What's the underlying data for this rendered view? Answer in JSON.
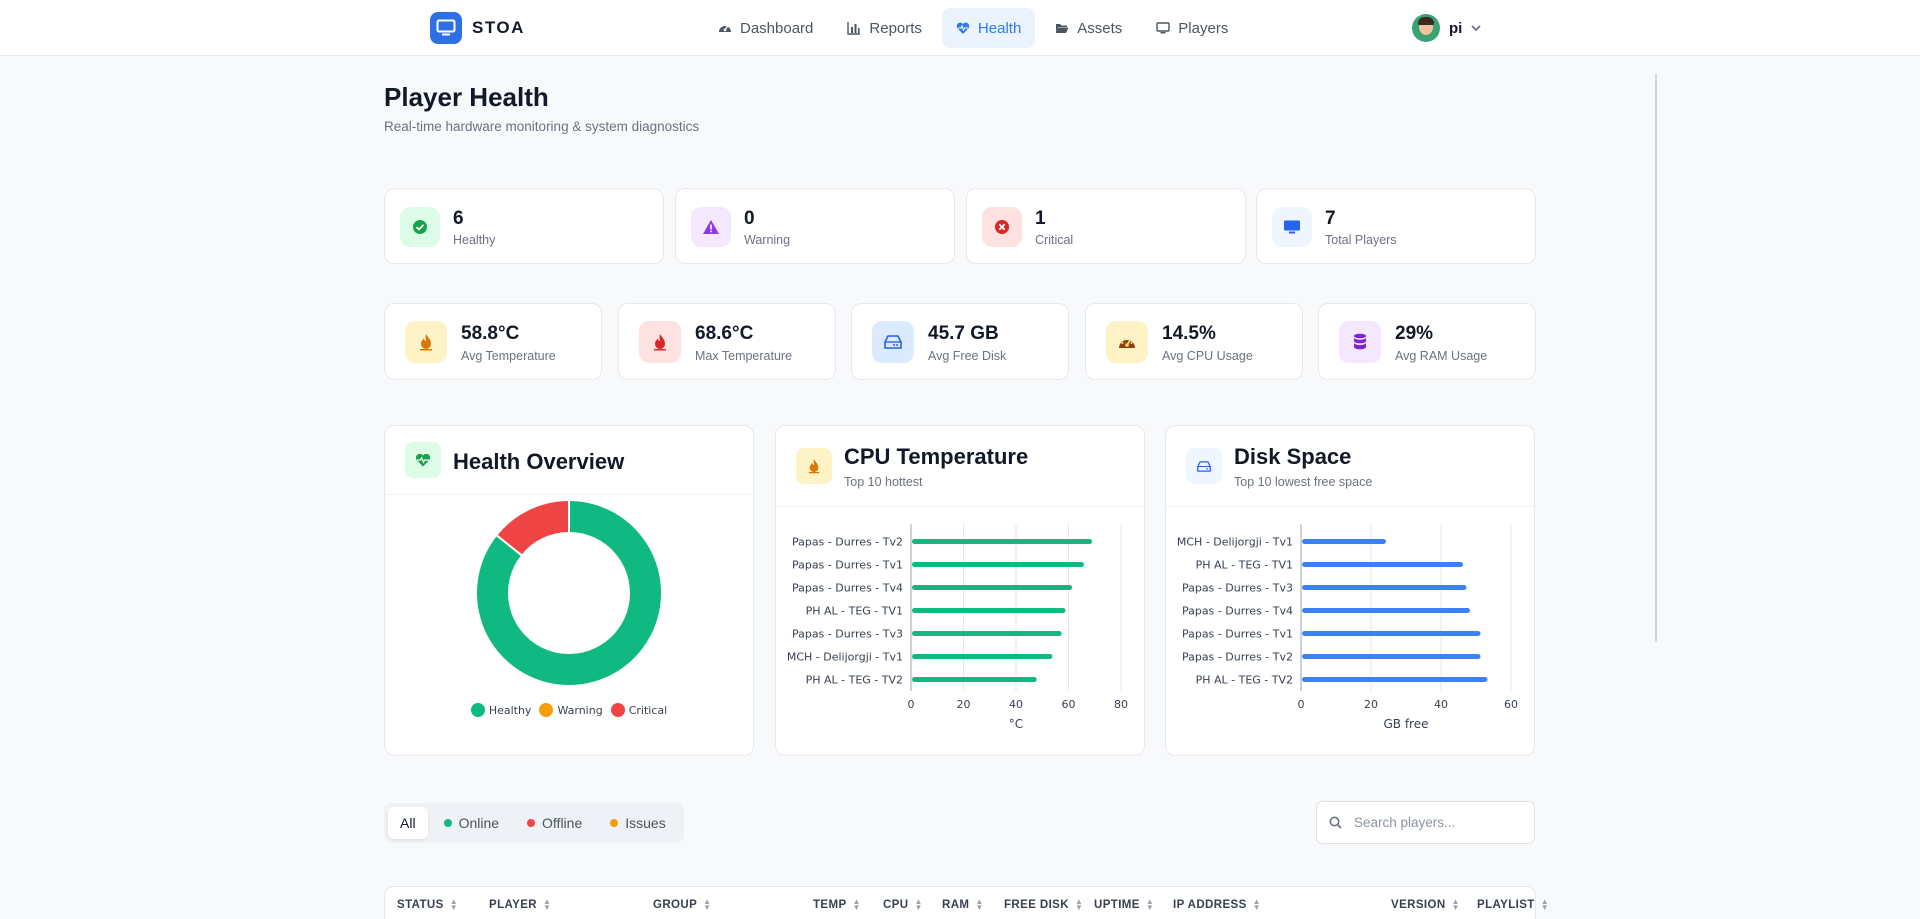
{
  "app": {
    "name": "STOA"
  },
  "nav": [
    {
      "label": "Dashboard",
      "icon": "gauge-icon",
      "active": false
    },
    {
      "label": "Reports",
      "icon": "bar-chart-icon",
      "active": false
    },
    {
      "label": "Health",
      "icon": "heartbeat-icon",
      "active": true
    },
    {
      "label": "Assets",
      "icon": "folder-open-icon",
      "active": false
    },
    {
      "label": "Players",
      "icon": "monitor-icon",
      "active": false
    }
  ],
  "user": {
    "name": "pi"
  },
  "page": {
    "title": "Player Health",
    "subtitle": "Real-time hardware monitoring & system diagnostics"
  },
  "status_cards": [
    {
      "value": "6",
      "label": "Healthy",
      "icon": "check-circle-icon",
      "color": "#16a34a",
      "bg": "#dcfce7"
    },
    {
      "value": "0",
      "label": "Warning",
      "icon": "warning-triangle-icon",
      "color": "#9333ea",
      "bg": "#f3e8ff"
    },
    {
      "value": "1",
      "label": "Critical",
      "icon": "x-circle-icon",
      "color": "#dc2626",
      "bg": "#fee2e2"
    },
    {
      "value": "7",
      "label": "Total Players",
      "icon": "monitor-icon",
      "color": "#2563eb",
      "bg": "#eff6ff"
    }
  ],
  "metrics": [
    {
      "value": "58.8°C",
      "label": "Avg Temperature",
      "icon": "fire-icon",
      "color": "#d97706",
      "bg": "#fef3c7"
    },
    {
      "value": "68.6°C",
      "label": "Max Temperature",
      "icon": "fire-icon",
      "color": "#dc2626",
      "bg": "#fee2e2"
    },
    {
      "value": "45.7 GB",
      "label": "Avg Free Disk",
      "icon": "hard-drive-icon",
      "color": "#2563eb",
      "bg": "#dbeafe"
    },
    {
      "value": "14.5%",
      "label": "Avg CPU Usage",
      "icon": "gauge-icon",
      "color": "#b45309",
      "bg": "#fef3c7"
    },
    {
      "value": "29%",
      "label": "Avg RAM Usage",
      "icon": "database-icon",
      "color": "#7e22ce",
      "bg": "#f3e8ff"
    }
  ],
  "panels": {
    "health": {
      "title": "Health Overview",
      "icon": "heartbeat-icon"
    },
    "cpu": {
      "title": "CPU Temperature",
      "subtitle": "Top 10 hottest",
      "icon": "fire-icon"
    },
    "disk": {
      "title": "Disk Space",
      "subtitle": "Top 10 lowest free space",
      "icon": "hard-drive-icon"
    }
  },
  "chart_data": [
    {
      "type": "pie",
      "variant": "doughnut",
      "categories": [
        "Healthy",
        "Warning",
        "Critical"
      ],
      "values": [
        6,
        0,
        1
      ],
      "colors": [
        "#10b981",
        "#f59e0b",
        "#ef4444"
      ],
      "legend": "bottom"
    },
    {
      "type": "bar",
      "orientation": "horizontal",
      "categories": [
        "Papas - Durres - Tv2",
        "Papas - Durres - Tv1",
        "Papas - Durres - Tv4",
        "PH AL - TEG - TV1",
        "Papas - Durres - Tv3",
        "MCH - Delijorgji - Tv1",
        "PH AL - TEG - TV2"
      ],
      "values": [
        68.6,
        65.5,
        61,
        58.5,
        57,
        53.5,
        47.5
      ],
      "xlabel": "°C",
      "xlim": [
        0,
        80
      ],
      "xticks": [
        0,
        20,
        40,
        60,
        80
      ],
      "color": "#10b981",
      "grid": true
    },
    {
      "type": "bar",
      "orientation": "horizontal",
      "categories": [
        "MCH - Delijorgji - Tv1",
        "PH AL - TEG - TV1",
        "Papas - Durres - Tv3",
        "Papas - Durres - Tv4",
        "Papas - Durres - Tv1",
        "Papas - Durres - Tv2",
        "PH AL - TEG - TV2"
      ],
      "values": [
        24,
        46,
        47,
        48,
        51,
        51,
        53
      ],
      "xlabel": "GB free",
      "xlim": [
        0,
        60
      ],
      "xticks": [
        0,
        20,
        40,
        60
      ],
      "color": "#3b82f6",
      "grid": true
    }
  ],
  "filters": [
    {
      "label": "All",
      "active": true,
      "dot": null
    },
    {
      "label": "Online",
      "active": false,
      "dot": "#10b981"
    },
    {
      "label": "Offline",
      "active": false,
      "dot": "#ef4444"
    },
    {
      "label": "Issues",
      "active": false,
      "dot": "#f59e0b"
    }
  ],
  "search": {
    "placeholder": "Search players..."
  },
  "table": {
    "columns": [
      "STATUS",
      "PLAYER",
      "GROUP",
      "TEMP",
      "CPU",
      "RAM",
      "FREE DISK",
      "UPTIME",
      "IP ADDRESS",
      "VERSION",
      "PLAYLIST"
    ]
  }
}
